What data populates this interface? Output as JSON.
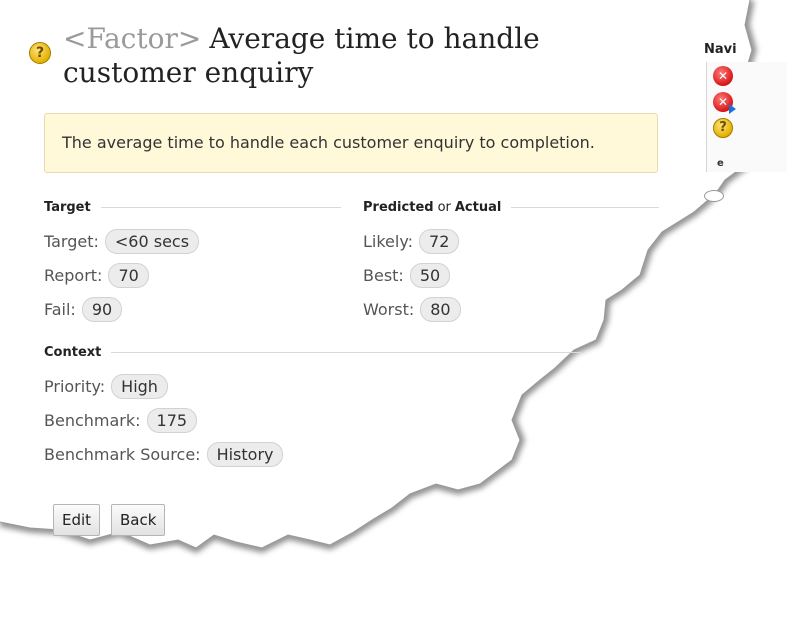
{
  "page": {
    "kind_label": "<Factor>",
    "title": "Average time to handle customer enquiry",
    "description": "The average time to handle each customer enquiry to completion.",
    "help_icon": "question-icon"
  },
  "target": {
    "heading": "Target",
    "fields": [
      {
        "label": "Target:",
        "value": "<60 secs"
      },
      {
        "label": "Report:",
        "value": "70"
      },
      {
        "label": "Fail:",
        "value": "90"
      }
    ]
  },
  "predicted": {
    "heading_a": "Predicted",
    "heading_or": "or",
    "heading_b": "Actual",
    "fields": [
      {
        "label": "Likely:",
        "value": "72"
      },
      {
        "label": "Best:",
        "value": "50"
      },
      {
        "label": "Worst:",
        "value": "80"
      }
    ]
  },
  "context": {
    "heading": "Context",
    "fields": [
      {
        "label": "Priority:",
        "value": "High"
      },
      {
        "label": "Benchmark:",
        "value": "175"
      },
      {
        "label": "Benchmark Source:",
        "value": "History"
      }
    ]
  },
  "buttons": {
    "edit": "Edit",
    "back": "Back"
  },
  "side_panel": {
    "title": "Navi",
    "snippet": "e",
    "icons": [
      "stop-icon",
      "stop-icon",
      "question-icon"
    ]
  },
  "colors": {
    "description_bg": "#fff8d9",
    "pill_bg": "#ececec",
    "stop_red": "#d71616",
    "help_yellow": "#e5b100"
  }
}
